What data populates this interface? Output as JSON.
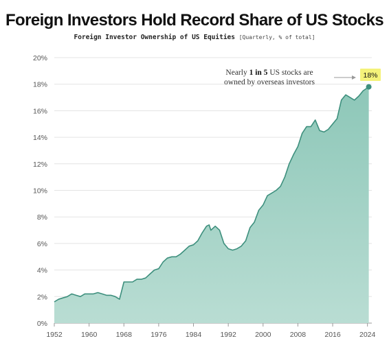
{
  "header": {
    "title": "Foreign Investors Hold Record Share of  US Stocks",
    "subtitle_main": "Foreign Investor Ownership of US Equities",
    "subtitle_unit": "[Quarterly, % of total]"
  },
  "annotation": {
    "pre": "Nearly ",
    "bold": "1 in 5",
    "post": " US stocks are",
    "line2": "owned by overseas investors"
  },
  "callout": {
    "label": "18%",
    "value": 17.8
  },
  "colors": {
    "area_fill": "#8dc7b8",
    "area_fill_bottom": "#b9ddd3",
    "line": "#3d8f7d",
    "grid": "#e3e3e3",
    "callout_bg": "#f4f27a",
    "marker": "#3d8f7d"
  },
  "chart_data": {
    "type": "area",
    "title": "Foreign Investors Hold Record Share of  US Stocks",
    "subtitle": "Foreign Investor Ownership of US Equities [Quarterly, % of total]",
    "xlabel": "",
    "ylabel": "",
    "xlim": [
      1952,
      2025
    ],
    "ylim": [
      0,
      20
    ],
    "x_ticks": [
      1952,
      1960,
      1968,
      1976,
      1984,
      1992,
      2000,
      2008,
      2016,
      2024
    ],
    "y_ticks": [
      0,
      2,
      4,
      6,
      8,
      10,
      12,
      14,
      16,
      18,
      20
    ],
    "y_tick_labels": [
      "0%",
      "2%",
      "4%",
      "6%",
      "8%",
      "10%",
      "12%",
      "14%",
      "16%",
      "18%",
      "20%"
    ],
    "grid": true,
    "series": [
      {
        "x": [
          1952,
          1953,
          1954,
          1955,
          1956,
          1957,
          1958,
          1959,
          1960,
          1961,
          1962,
          1963,
          1964,
          1965,
          1966,
          1967,
          1968,
          1969,
          1970,
          1971,
          1972,
          1973,
          1974,
          1975,
          1976,
          1977,
          1978,
          1979,
          1980,
          1981,
          1982,
          1983,
          1984,
          1985,
          1986,
          1987,
          1987.6,
          1988,
          1989,
          1990,
          1991,
          1992,
          1993,
          1994,
          1995,
          1996,
          1997,
          1998,
          1999,
          2000,
          2001,
          2002,
          2003,
          2004,
          2005,
          2006,
          2007,
          2008,
          2009,
          2010,
          2011,
          2012,
          2013,
          2014,
          2015,
          2016,
          2017,
          2018,
          2019,
          2020,
          2021,
          2022,
          2023,
          2024.3
        ],
        "values": [
          1.6,
          1.8,
          1.9,
          2.0,
          2.2,
          2.1,
          2.0,
          2.2,
          2.2,
          2.2,
          2.3,
          2.2,
          2.1,
          2.1,
          2.0,
          1.8,
          3.1,
          3.1,
          3.1,
          3.3,
          3.3,
          3.4,
          3.7,
          4.0,
          4.1,
          4.6,
          4.9,
          5.0,
          5.0,
          5.2,
          5.5,
          5.8,
          5.9,
          6.2,
          6.8,
          7.3,
          7.4,
          7.0,
          7.3,
          7.0,
          6.0,
          5.6,
          5.5,
          5.6,
          5.8,
          6.2,
          7.2,
          7.6,
          8.5,
          8.9,
          9.6,
          9.8,
          10.0,
          10.3,
          11.0,
          12.0,
          12.7,
          13.3,
          14.3,
          14.8,
          14.8,
          15.3,
          14.5,
          14.4,
          14.6,
          15.0,
          15.4,
          16.8,
          17.2,
          17.0,
          16.8,
          17.1,
          17.5,
          17.8
        ]
      }
    ]
  }
}
